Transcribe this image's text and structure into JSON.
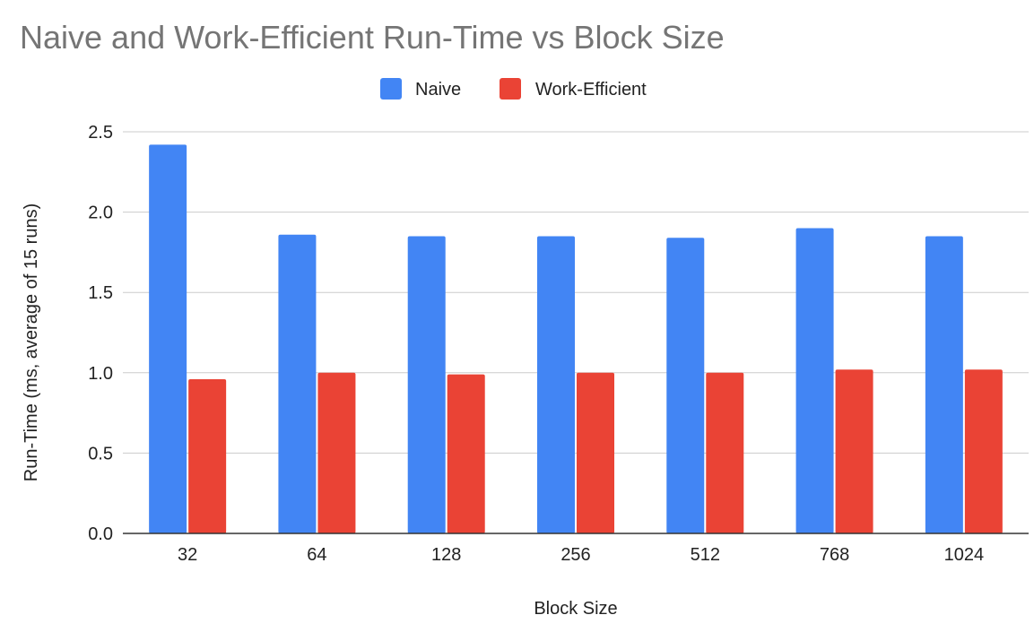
{
  "chart_data": {
    "type": "bar",
    "title": "Naive and Work-Efficient Run-Time vs Block Size",
    "xlabel": "Block Size",
    "ylabel": "Run-Time (ms, average of 15 runs)",
    "categories": [
      "32",
      "64",
      "128",
      "256",
      "512",
      "768",
      "1024"
    ],
    "series": [
      {
        "name": "Naive",
        "color": "#4285f4",
        "values": [
          2.42,
          1.86,
          1.85,
          1.85,
          1.84,
          1.9,
          1.85
        ]
      },
      {
        "name": "Work-Efficient",
        "color": "#ea4335",
        "values": [
          0.96,
          1.0,
          0.99,
          1.0,
          1.0,
          1.02,
          1.02
        ]
      }
    ],
    "ylim": [
      0,
      2.5
    ],
    "yticks": [
      "0.0",
      "0.5",
      "1.0",
      "1.5",
      "2.0",
      "2.5"
    ],
    "grid": true,
    "legend_position": "top"
  }
}
